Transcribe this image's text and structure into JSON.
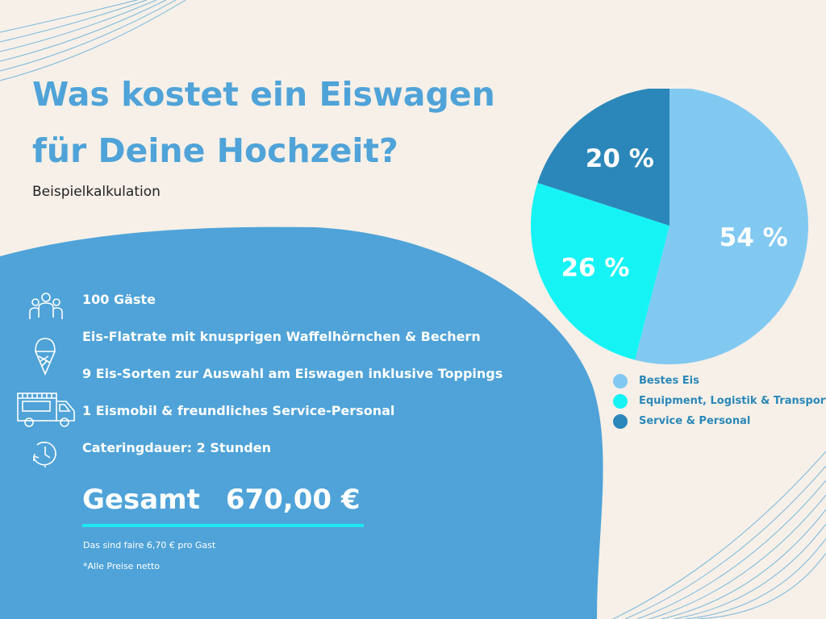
{
  "header": {
    "title_line1": "Was kostet ein Eiswagen",
    "title_line2": "für Deine Hochzeit?",
    "subtitle": "Beispielkalkulation"
  },
  "features": [
    {
      "icon": "people-icon",
      "text": "100 Gäste"
    },
    {
      "icon": "ice-cream-cone-icon",
      "text": "Eis-Flatrate mit knusprigen Waffelhörnchen & Bechern"
    },
    {
      "icon": "",
      "text": "9 Eis-Sorten zur Auswahl am Eiswagen inklusive Toppings"
    },
    {
      "icon": "ice-cream-truck-icon",
      "text": "1 Eismobil & freundliches Service-Personal"
    },
    {
      "icon": "clock-icon",
      "text": "Cateringdauer: 2 Stunden"
    }
  ],
  "total": {
    "label": "Gesamt",
    "amount": "670,00 €",
    "per_guest_note": "Das sind faire 6,70 € pro Gast",
    "net_note": "*Alle Preise netto"
  },
  "colors": {
    "background": "#f6f0e8",
    "blob": "#4fa3d8",
    "title": "#4fa3d8",
    "accent_line": "#1ee8f0"
  },
  "chart_data": {
    "type": "pie",
    "title": "",
    "slices": [
      {
        "label": "Bestes Eis",
        "value": 54,
        "display": "54 %",
        "color": "#82c9f2"
      },
      {
        "label": "Equipment, Logistik & Transport",
        "value": 26,
        "display": "26 %",
        "color": "#16f3f5"
      },
      {
        "label": "Service & Personal",
        "value": 20,
        "display": "20 %",
        "color": "#2b87b9"
      }
    ],
    "start_angle_deg": 0,
    "direction": "clockwise",
    "legend_position": "bottom"
  }
}
